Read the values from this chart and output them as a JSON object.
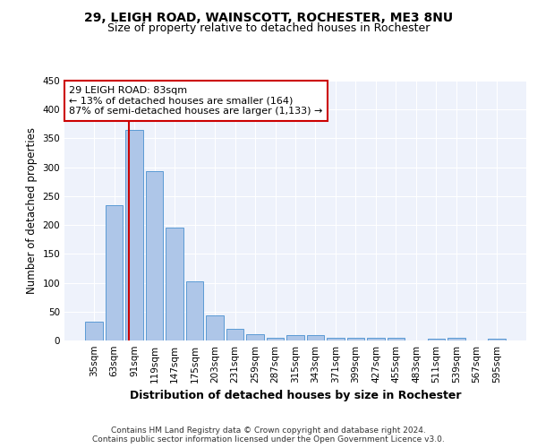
{
  "title1": "29, LEIGH ROAD, WAINSCOTT, ROCHESTER, ME3 8NU",
  "title2": "Size of property relative to detached houses in Rochester",
  "xlabel": "Distribution of detached houses by size in Rochester",
  "ylabel": "Number of detached properties",
  "categories": [
    "35sqm",
    "63sqm",
    "91sqm",
    "119sqm",
    "147sqm",
    "175sqm",
    "203sqm",
    "231sqm",
    "259sqm",
    "287sqm",
    "315sqm",
    "343sqm",
    "371sqm",
    "399sqm",
    "427sqm",
    "455sqm",
    "483sqm",
    "511sqm",
    "539sqm",
    "567sqm",
    "595sqm"
  ],
  "values": [
    33,
    235,
    365,
    293,
    196,
    103,
    44,
    20,
    11,
    5,
    9,
    10,
    5,
    4,
    4,
    4,
    0,
    3,
    4,
    0,
    3
  ],
  "bar_color": "#aec6e8",
  "bar_edge_color": "#5b9bd5",
  "vline_color": "#cc0000",
  "annotation_text": "29 LEIGH ROAD: 83sqm\n← 13% of detached houses are smaller (164)\n87% of semi-detached houses are larger (1,133) →",
  "annotation_box_color": "#ffffff",
  "annotation_box_edge": "#cc0000",
  "ylim": [
    0,
    450
  ],
  "yticks": [
    0,
    50,
    100,
    150,
    200,
    250,
    300,
    350,
    400,
    450
  ],
  "footer1": "Contains HM Land Registry data © Crown copyright and database right 2024.",
  "footer2": "Contains public sector information licensed under the Open Government Licence v3.0.",
  "background_color": "#eef2fb",
  "grid_color": "#ffffff",
  "title1_fontsize": 10,
  "title2_fontsize": 9,
  "axis_label_fontsize": 8.5,
  "tick_fontsize": 7.5,
  "annotation_fontsize": 8,
  "footer_fontsize": 6.5
}
